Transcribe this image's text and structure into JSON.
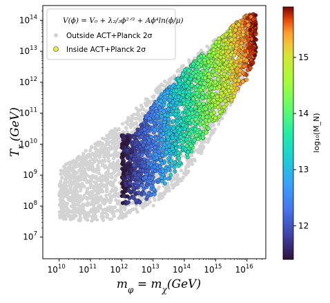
{
  "chart_data": {
    "type": "scatter",
    "title": "",
    "xlabel": "m_φ = m_χ(GeV)",
    "ylabel": "T_r (GeV)",
    "x_scale": "log",
    "y_scale": "log",
    "xlim": [
      3000000000.0,
      4e+16
    ],
    "ylim": [
      2000000.0,
      300000000000000.0
    ],
    "x_ticks": [
      {
        "value": 10000000000.0,
        "base": "10",
        "exp": "10"
      },
      {
        "value": 100000000000.0,
        "base": "10",
        "exp": "11"
      },
      {
        "value": 1000000000000.0,
        "base": "10",
        "exp": "12"
      },
      {
        "value": 10000000000000.0,
        "base": "10",
        "exp": "13"
      },
      {
        "value": 100000000000000.0,
        "base": "10",
        "exp": "14"
      },
      {
        "value": 1000000000000000.0,
        "base": "10",
        "exp": "15"
      },
      {
        "value": 1e+16,
        "base": "10",
        "exp": "16"
      }
    ],
    "y_ticks": [
      {
        "value": 10000000.0,
        "base": "10",
        "exp": "7"
      },
      {
        "value": 100000000.0,
        "base": "10",
        "exp": "8"
      },
      {
        "value": 1000000000.0,
        "base": "10",
        "exp": "9"
      },
      {
        "value": 10000000000.0,
        "base": "10",
        "exp": "10"
      },
      {
        "value": 100000000000.0,
        "base": "10",
        "exp": "11"
      },
      {
        "value": 1000000000000.0,
        "base": "10",
        "exp": "12"
      },
      {
        "value": 10000000000000.0,
        "base": "10",
        "exp": "13"
      },
      {
        "value": 100000000000000.0,
        "base": "10",
        "exp": "14"
      }
    ],
    "grid": false,
    "legend": {
      "placement": "top-left",
      "equation": "V(ϕ) = V₀ + λ₂/₃ϕ²ᐟ³ + Aϕ⁴ln(ϕ/μ)",
      "entries": [
        {
          "label": "Outside ACT+Planck 2σ",
          "color": "#d3d3d3"
        },
        {
          "label": "Inside ACT+Planck 2σ",
          "color": "#e8f040"
        }
      ]
    },
    "colorbar": {
      "label": "log₁₀(M_N)",
      "colormap": "turbo",
      "range": [
        11.4,
        15.9
      ],
      "ticks": [
        12,
        13,
        14,
        15
      ]
    },
    "series": [
      {
        "name": "Outside ACT+Planck 2σ",
        "color": "#d3d3d3",
        "region": {
          "log_x_range": [
            10.0,
            16.2
          ],
          "upper_edge_log_x": [
            10.0,
            11.0,
            12.0,
            13.0,
            14.0,
            15.0,
            16.0,
            16.3
          ],
          "upper_edge_log_y": [
            9.2,
            9.9,
            10.7,
            11.7,
            12.6,
            13.4,
            14.1,
            14.2
          ],
          "lower_edge_log_x": [
            10.0,
            11.0,
            12.0,
            13.0,
            14.0,
            15.0,
            16.0,
            16.3
          ],
          "lower_edge_log_y": [
            7.6,
            7.5,
            7.6,
            8.0,
            8.9,
            10.4,
            12.2,
            13.0
          ]
        }
      },
      {
        "name": "Inside ACT+Planck 2σ",
        "color_by": "log10_M_N",
        "region": {
          "log_x_range": [
            12.0,
            16.3
          ],
          "upper_edge_log_x": [
            12.4,
            13.0,
            14.0,
            15.0,
            15.5,
            16.0,
            16.3
          ],
          "upper_edge_log_y": [
            10.3,
            11.3,
            12.4,
            13.3,
            13.8,
            14.2,
            14.2
          ],
          "lower_edge_log_x": [
            12.3,
            13.0,
            14.0,
            15.0,
            16.0,
            16.3
          ],
          "lower_edge_log_y": [
            8.0,
            8.3,
            9.4,
            10.7,
            12.0,
            12.9
          ]
        }
      }
    ]
  }
}
